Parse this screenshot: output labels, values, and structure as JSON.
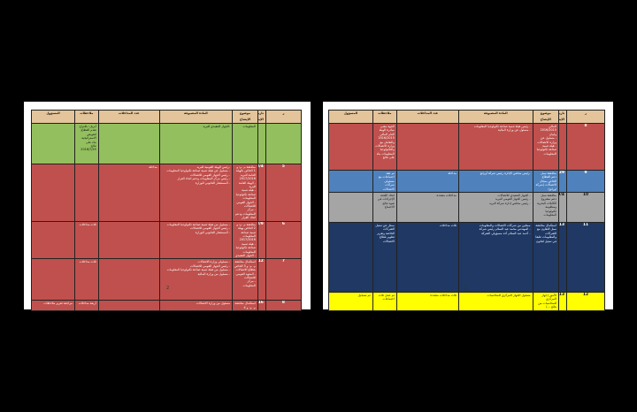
{
  "doc": {
    "left_page": {
      "page_number": "2",
      "headers": [
        "ملاحظات",
        "عدد المداخلات",
        "المادة المضيوفة",
        "موضوع الإيضاح",
        "تاريخ الإيضاح",
        "ر",
        "المسؤول"
      ],
      "rows": [
        {
          "color": "#93bf5e",
          "num": "",
          "date": "",
          "topic": "المعلومات",
          "guest": "-الجهاز التنفيذي للبريد",
          "count": "",
          "notes": "أبريل: باقتراح تقدم القطاع\nلتعويض\nالاستراتيجية بناء على\nنتائج 2016/7/29",
          "resp": ""
        },
        {
          "color": "#c0504d",
          "num": "5",
          "date": "2016/8/4",
          "topic": "مناقشة م. م: و 1 الخاص بالهيئة العامة للبريد 2017/2016\n- الهيئة العامة للبريد\n- هيئة تنمية صناعة تكنولوجيا المعلومات\n- الجهاز القومي للاتصالات\n- مركز المعلومات ودعم اتخاذ القرار",
          "guest": "-رئيس الهيئة القومية للبريد\n- مسئول عن هيئة تنمية صناعة تكنولوجيا المعلومات\n- رئيس الجهاز القومي للاتصالات\n- رئيس مركز المعلومات ودعم اتخاذ القرار\n- المستشار القانوني للوزارة",
          "count": "مداخلة",
          "notes": "",
          "resp": ""
        },
        {
          "color": "#c0504d",
          "num": "6",
          "date": "2016/8/9",
          "topic": "مناقشة م. م: و 2 الخاص بهيئة تنمية صناعة المعلومات 2017/2016\n- هيئة تنمية صناعة تكنولوجيا المعلومات\n- الجهاز التنفيذي",
          "guest": "- مسئول من هيئة تنمية صناعة تكنولوجيا المعلومات\n- رئيس الجهاز القومي للاتصالات\n- المستشار القانوني للوزارة",
          "count": "",
          "notes": "ثلاث مداخلات",
          "resp": ""
        },
        {
          "color": "#c0504d",
          "num": "7",
          "date": "2016/8/12",
          "topic": "استكمال مناقشة م. م: و 3 الخاص بقطاع الاتصالات\n- المعهد القومي للاتصالات\n- مركز المعلومات",
          "guest": "- مسئولي وزارة الاتصالات\n- رئيس الجهاز القومي للاتصالات\n- مسئول من هيئة تنمية صناعة تكنولوجيا المعلومات\n- مسئول من وزارة المالية",
          "count": "",
          "notes": "ثلاث مداخلات",
          "resp": ""
        },
        {
          "color": "#c0504d",
          "num": "8",
          "date": "2016/8/16",
          "topic": "استكمال مناقشة م. م: و 4",
          "guest": "مسئول من وزارة الاتصالات",
          "count": "",
          "notes": "أربعة مداخلات",
          "resp": "مراجعة تقرير ملاحظات"
        }
      ]
    },
    "right_page": {
      "page_number": "3",
      "headers": [
        "ملاحظات",
        "عدد المداخلات",
        "المادة المضيوفة",
        "موضوع الإيضاح",
        "تاريخ الإيضاح",
        "ر",
        "المسؤول"
      ],
      "rows": [
        {
          "color": "#c0504d",
          "num": "8",
          "date": "",
          "topic": "المالي 2016/2015 ولبيان\n- مسئول عن وزارة الاتصالات\n- هيئة تنمية صناعة تكنولوجيا المعلومات",
          "guest": "- رئيس هيئة تنمية صناعة تكنولوجيا المعلومات\n- مسئول عن وزارة المالية",
          "count": "",
          "notes": "الجهة معنى مبادرة الهيئة العام المالي 2016/2015\nوالتعامل مع وزارة الاتصالات\nوالتكنولوجيا المعلومات بناء على نتائج",
          "resp": ""
        },
        {
          "color": "#4f81bd",
          "num": "9",
          "date": "2016/8/29",
          "topic": "مناقشة سبل دعم القطاع الخاص بمجال الاتصالات (شركة اورانج)",
          "guest": "-رئيس مجلس الإدارة رئيس شركة أورانج",
          "count": "مداخلة",
          "notes": "تم عقد اجتماعات مع مسئولي شركات الاتصالات",
          "resp": ""
        },
        {
          "color": "#a5a5a5",
          "num": "10",
          "date": "2016/9/4",
          "topic": "مناقشة سبل دعم مشروع الكابلات البحرية ومنظومة تكنولوجيا المعلومات",
          "guest": "- الجهاز التنفيذي للاتصالات\n- رئيس الجهاز القومي للبريد\n- رئيس مجلس إدارة شركة البريد",
          "count": "مداخلات متعددة",
          "notes": "اتخاذ اللجنة الإجراءات في ضوء نتائج الاجتماع",
          "resp": ""
        },
        {
          "color": "#1f3864",
          "num": "11",
          "date": "2016/9/13",
          "topic": "استكمال مناقشة سبل التعاون مع الشركات والمعلومات طبقا في تمثيل لقانون",
          "guest": "ممثلين من شركات الاتصالات والمعلومات\n- المهندس محمد عبد السلام رئيس شركة\n- أحمد عبد السلام أحد مسؤولي الشركة",
          "count": "ثلاث مداخلات",
          "notes": "ممثل عن تمثيل الشركات الخاصة وتعزيز تطوير قطاع الاتصالات",
          "resp": ""
        },
        {
          "color": "#ffff00",
          "num": "12",
          "date": "2016/9/13",
          "topic": "الأمور (جهاز المركزي للمحاسبات من نتائج ...)",
          "guest": "مسئول الجهاز المركزي للمحاسبات",
          "count": "ثلاث مداخلات متعددة",
          "notes": "تم عمل ثلاث اجتماعات",
          "resp": "تم تسجيل"
        }
      ]
    }
  }
}
